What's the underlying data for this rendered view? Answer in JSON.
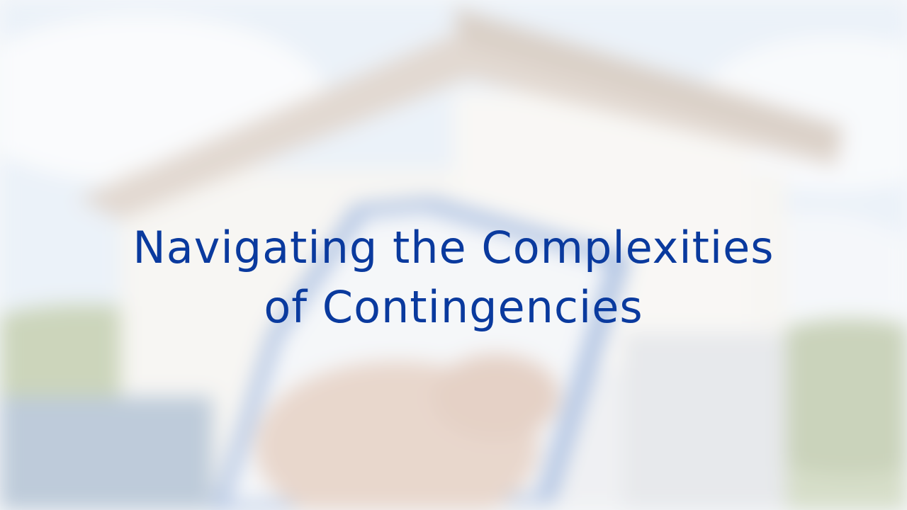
{
  "title": {
    "line1": "Navigating the Complexities",
    "line2": "of Contingencies"
  },
  "colors": {
    "title": "#0a3a9e",
    "sky": "#dbe7f3",
    "roof": "#c9b9ad",
    "house_wall": "#f2f0ec",
    "foliage": "#a9b98c",
    "phone_frame": "#5b82c4",
    "hand": "#d7b8a6"
  },
  "icons": [
    "background-photo-house"
  ]
}
